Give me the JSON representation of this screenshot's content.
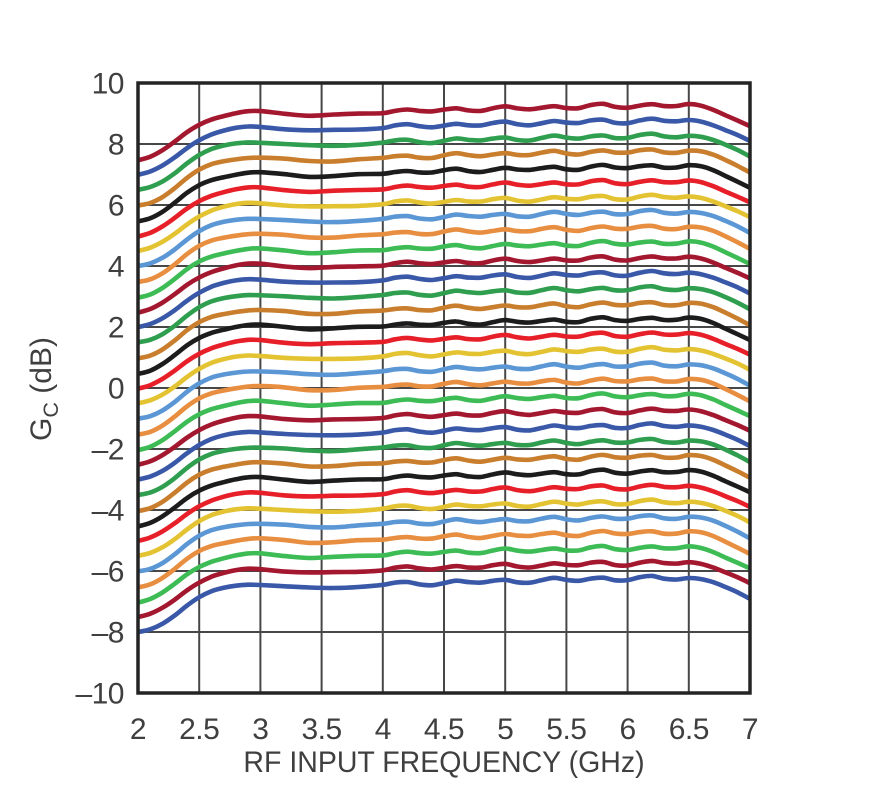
{
  "chart_data": {
    "type": "line",
    "title": "",
    "xlabel": "RF INPUT FREQUENCY (GHz)",
    "ylabel": {
      "prefix": "G",
      "sub": "C",
      "suffix": " (dB)"
    },
    "xlim": [
      2,
      7
    ],
    "ylim": [
      -10,
      10
    ],
    "xticks": [
      2,
      2.5,
      3,
      3.5,
      4,
      4.5,
      5,
      5.5,
      6,
      6.5,
      7
    ],
    "xtick_labels": [
      "2",
      "2.5",
      "3",
      "3.5",
      "4",
      "4.5",
      "5",
      "5.5",
      "6",
      "6.5",
      "7"
    ],
    "yticks": [
      10,
      8,
      6,
      4,
      2,
      0,
      -2,
      -4,
      -6,
      -8,
      -10
    ],
    "ytick_labels": [
      "10",
      "8",
      "6",
      "4",
      "2",
      "0",
      "–2",
      "–4",
      "–6",
      "–8",
      "–10"
    ],
    "grid": true,
    "legend": false,
    "series_description": "32 overlaid conversion-gain curves (digital gain states in 0.5 dB steps); each curve y(x) = gain_level + shared_shape_delta(x)",
    "x_ghz": [
      2.0,
      2.1,
      2.2,
      2.3,
      2.4,
      2.5,
      2.6,
      2.7,
      2.8,
      2.9,
      3.0,
      3.2,
      3.4,
      3.6,
      3.8,
      4.0,
      4.1,
      4.2,
      4.3,
      4.4,
      4.5,
      4.6,
      4.7,
      4.8,
      4.9,
      5.0,
      5.1,
      5.2,
      5.3,
      5.4,
      5.5,
      5.6,
      5.7,
      5.8,
      5.9,
      6.0,
      6.1,
      6.2,
      6.3,
      6.4,
      6.5,
      6.6,
      6.7,
      6.8,
      6.9,
      7.0
    ],
    "shared_shape_delta_db": [
      -1.52,
      -1.42,
      -1.22,
      -0.94,
      -0.62,
      -0.36,
      -0.18,
      -0.07,
      0.01,
      0.06,
      0.06,
      0.0,
      -0.06,
      -0.05,
      -0.01,
      0.03,
      0.1,
      0.13,
      0.07,
      0.05,
      0.12,
      0.18,
      0.12,
      0.1,
      0.17,
      0.22,
      0.15,
      0.13,
      0.2,
      0.26,
      0.19,
      0.17,
      0.26,
      0.3,
      0.21,
      0.2,
      0.28,
      0.32,
      0.24,
      0.23,
      0.29,
      0.25,
      0.13,
      -0.04,
      -0.22,
      -0.42
    ],
    "gain_levels_db": [
      9.0,
      8.5,
      8.0,
      7.5,
      7.0,
      6.5,
      6.0,
      5.5,
      5.0,
      4.5,
      4.0,
      3.5,
      3.0,
      2.5,
      2.0,
      1.5,
      1.0,
      0.5,
      0.0,
      -0.5,
      -1.0,
      -1.5,
      -2.0,
      -2.5,
      -3.0,
      -3.5,
      -4.0,
      -4.5,
      -5.0,
      -5.5,
      -6.0,
      -6.5
    ],
    "color_cycle": [
      "#a4182f",
      "#3a58a8",
      "#2f9e4f",
      "#c97e2d",
      "#1c1c1c",
      "#e71f29",
      "#e4c333",
      "#5c97d5",
      "#e88e40",
      "#3dbb55"
    ],
    "color_assignment": "curve i uses color_cycle[i mod 10], top curve is i=0",
    "style": {
      "line_width": 4.6,
      "grid_color": "#474747",
      "border_color": "#242424",
      "text_color": "#3f3f3f",
      "background": "#ffffff"
    }
  }
}
